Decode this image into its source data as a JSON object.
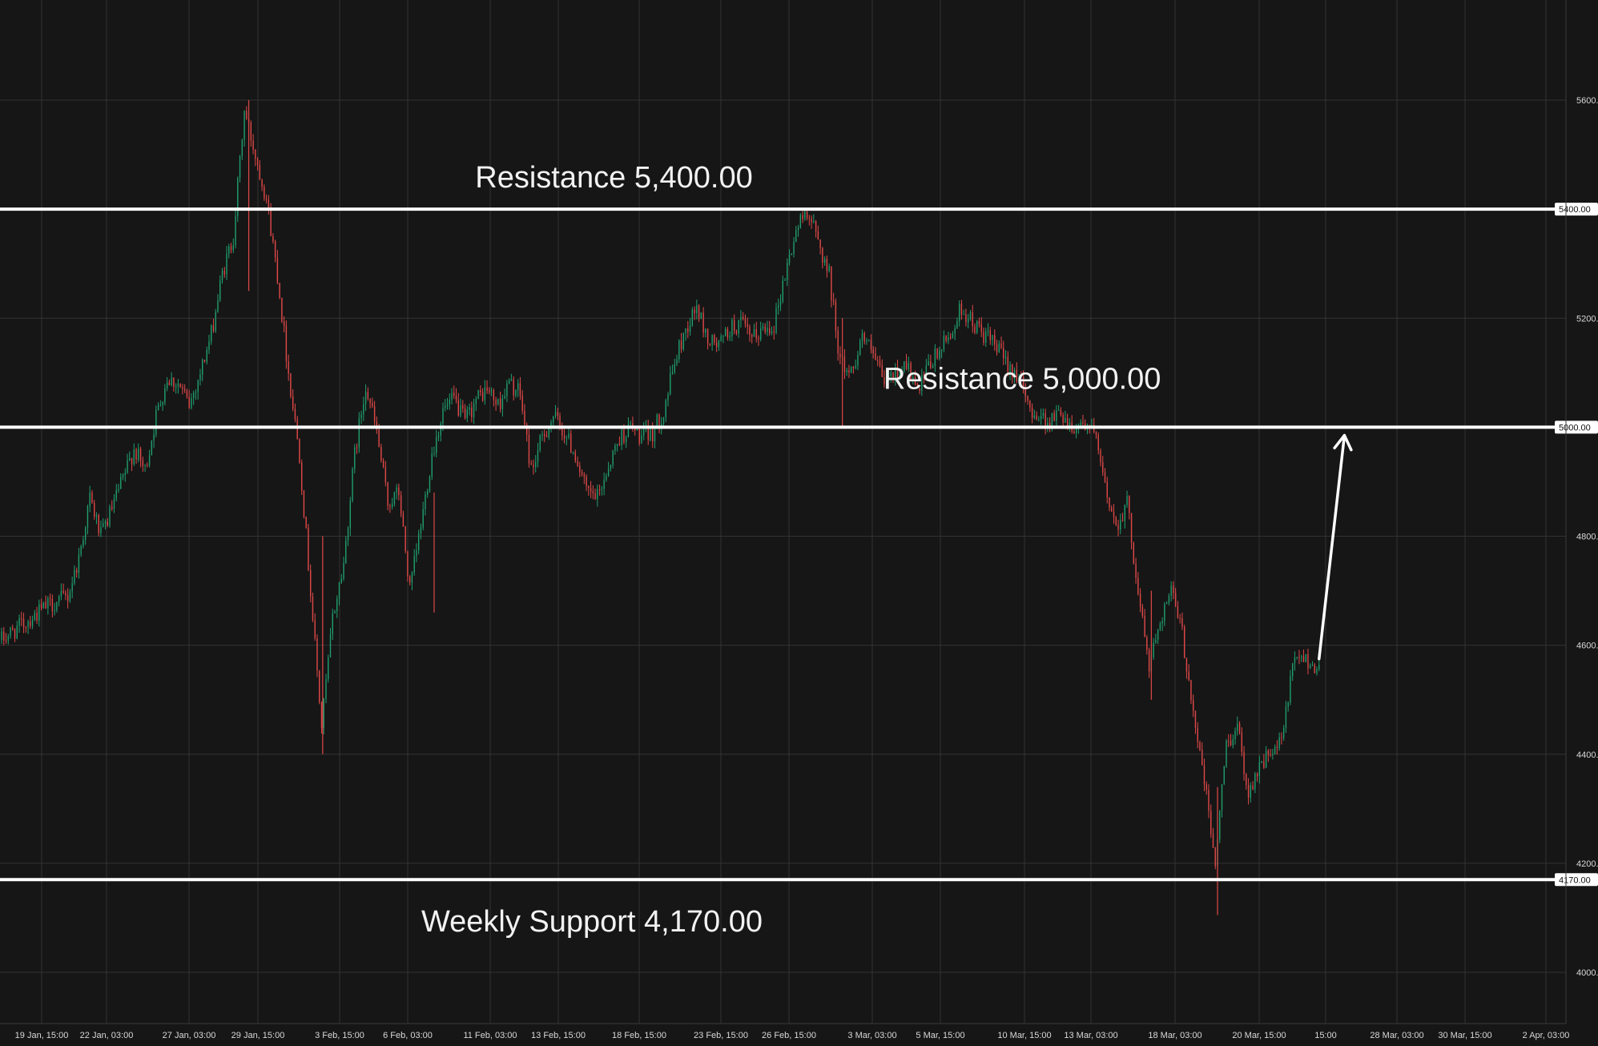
{
  "chart_data": {
    "type": "candlestick",
    "title": "",
    "ylim": [
      3920,
      5760
    ],
    "y_ticks": [
      "5600.00",
      "5200.00",
      "4800.00",
      "4600.00",
      "4400.00",
      "4200.00",
      "4000.00"
    ],
    "x_ticks": [
      "19 Jan, 15:00",
      "22 Jan, 03:00",
      "27 Jan, 03:00",
      "29 Jan, 15:00",
      "3 Feb, 15:00",
      "6 Feb, 03:00",
      "11 Feb, 03:00",
      "13 Feb, 15:00",
      "18 Feb, 15:00",
      "23 Feb, 15:00",
      "26 Feb, 15:00",
      "3 Mar, 03:00",
      "5 Mar, 15:00",
      "10 Mar, 15:00",
      "13 Mar, 03:00",
      "18 Mar, 03:00",
      "20 Mar, 15:00",
      "15:00",
      "28 Mar, 03:00",
      "30 Mar, 15:00",
      "2 Apr, 03:00"
    ],
    "grid": true,
    "up_color": "#1f9e6e",
    "down_color": "#e04848",
    "price_path": [
      {
        "t": 0,
        "p": 4610
      },
      {
        "t": 2,
        "p": 4640
      },
      {
        "t": 4,
        "p": 4670
      },
      {
        "t": 6,
        "p": 4690
      },
      {
        "t": 7,
        "p": 4760
      },
      {
        "t": 8,
        "p": 4870
      },
      {
        "t": 9,
        "p": 4800
      },
      {
        "t": 10,
        "p": 4850
      },
      {
        "t": 12,
        "p": 4960
      },
      {
        "t": 13,
        "p": 4920
      },
      {
        "t": 14,
        "p": 5020
      },
      {
        "t": 15,
        "p": 5090
      },
      {
        "t": 16,
        "p": 5080
      },
      {
        "t": 17,
        "p": 5040
      },
      {
        "t": 18,
        "p": 5100
      },
      {
        "t": 19,
        "p": 5170
      },
      {
        "t": 20,
        "p": 5280
      },
      {
        "t": 21,
        "p": 5350
      },
      {
        "t": 22,
        "p": 5580
      },
      {
        "t": 23,
        "p": 5500
      },
      {
        "t": 24,
        "p": 5420
      },
      {
        "t": 25,
        "p": 5280
      },
      {
        "t": 26,
        "p": 5100
      },
      {
        "t": 27,
        "p": 4950
      },
      {
        "t": 28,
        "p": 4700
      },
      {
        "t": 29,
        "p": 4450
      },
      {
        "t": 30,
        "p": 4650
      },
      {
        "t": 31,
        "p": 4750
      },
      {
        "t": 32,
        "p": 4950
      },
      {
        "t": 33,
        "p": 5080
      },
      {
        "t": 34,
        "p": 4990
      },
      {
        "t": 35,
        "p": 4860
      },
      {
        "t": 36,
        "p": 4880
      },
      {
        "t": 37,
        "p": 4700
      },
      {
        "t": 38,
        "p": 4820
      },
      {
        "t": 39,
        "p": 4950
      },
      {
        "t": 40,
        "p": 5030
      },
      {
        "t": 41,
        "p": 5050
      },
      {
        "t": 42,
        "p": 5010
      },
      {
        "t": 43,
        "p": 5050
      },
      {
        "t": 44,
        "p": 5070
      },
      {
        "t": 45,
        "p": 5040
      },
      {
        "t": 46,
        "p": 5080
      },
      {
        "t": 47,
        "p": 5060
      },
      {
        "t": 48,
        "p": 4920
      },
      {
        "t": 49,
        "p": 4980
      },
      {
        "t": 50,
        "p": 5020
      },
      {
        "t": 51,
        "p": 4990
      },
      {
        "t": 52,
        "p": 4950
      },
      {
        "t": 53,
        "p": 4880
      },
      {
        "t": 54,
        "p": 4870
      },
      {
        "t": 55,
        "p": 4930
      },
      {
        "t": 56,
        "p": 4980
      },
      {
        "t": 57,
        "p": 5000
      },
      {
        "t": 58,
        "p": 4980
      },
      {
        "t": 59,
        "p": 4990
      },
      {
        "t": 60,
        "p": 5030
      },
      {
        "t": 61,
        "p": 5120
      },
      {
        "t": 62,
        "p": 5180
      },
      {
        "t": 63,
        "p": 5220
      },
      {
        "t": 64,
        "p": 5160
      },
      {
        "t": 65,
        "p": 5150
      },
      {
        "t": 66,
        "p": 5180
      },
      {
        "t": 67,
        "p": 5190
      },
      {
        "t": 68,
        "p": 5160
      },
      {
        "t": 69,
        "p": 5180
      },
      {
        "t": 70,
        "p": 5190
      },
      {
        "t": 71,
        "p": 5280
      },
      {
        "t": 72,
        "p": 5360
      },
      {
        "t": 73,
        "p": 5400
      },
      {
        "t": 74,
        "p": 5340
      },
      {
        "t": 75,
        "p": 5280
      },
      {
        "t": 76,
        "p": 5120
      },
      {
        "t": 77,
        "p": 5100
      },
      {
        "t": 78,
        "p": 5170
      },
      {
        "t": 79,
        "p": 5130
      },
      {
        "t": 80,
        "p": 5080
      },
      {
        "t": 81,
        "p": 5100
      },
      {
        "t": 82,
        "p": 5120
      },
      {
        "t": 83,
        "p": 5060
      },
      {
        "t": 84,
        "p": 5110
      },
      {
        "t": 85,
        "p": 5140
      },
      {
        "t": 86,
        "p": 5170
      },
      {
        "t": 87,
        "p": 5220
      },
      {
        "t": 88,
        "p": 5190
      },
      {
        "t": 89,
        "p": 5170
      },
      {
        "t": 90,
        "p": 5150
      },
      {
        "t": 91,
        "p": 5120
      },
      {
        "t": 92,
        "p": 5100
      },
      {
        "t": 93,
        "p": 5040
      },
      {
        "t": 94,
        "p": 5020
      },
      {
        "t": 95,
        "p": 5010
      },
      {
        "t": 96,
        "p": 5030
      },
      {
        "t": 97,
        "p": 5000
      },
      {
        "t": 98,
        "p": 5010
      },
      {
        "t": 99,
        "p": 4990
      },
      {
        "t": 100,
        "p": 4890
      },
      {
        "t": 101,
        "p": 4820
      },
      {
        "t": 102,
        "p": 4860
      },
      {
        "t": 103,
        "p": 4700
      },
      {
        "t": 104,
        "p": 4560
      },
      {
        "t": 105,
        "p": 4650
      },
      {
        "t": 106,
        "p": 4700
      },
      {
        "t": 107,
        "p": 4620
      },
      {
        "t": 108,
        "p": 4480
      },
      {
        "t": 109,
        "p": 4350
      },
      {
        "t": 110,
        "p": 4200
      },
      {
        "t": 111,
        "p": 4420
      },
      {
        "t": 112,
        "p": 4450
      },
      {
        "t": 113,
        "p": 4330
      },
      {
        "t": 114,
        "p": 4380
      },
      {
        "t": 115,
        "p": 4400
      },
      {
        "t": 116,
        "p": 4420
      },
      {
        "t": 117,
        "p": 4560
      },
      {
        "t": 118,
        "p": 4580
      },
      {
        "t": 119,
        "p": 4560
      }
    ],
    "spikes": [
      {
        "t": 22.4,
        "low": 5250,
        "high": 5600
      },
      {
        "t": 29.1,
        "low": 4400,
        "high": 4800
      },
      {
        "t": 110.2,
        "low": 4105,
        "high": 4340
      },
      {
        "t": 76.2,
        "low": 5000,
        "high": 5200
      },
      {
        "t": 39.2,
        "low": 4660,
        "high": 4880
      },
      {
        "t": 104.2,
        "low": 4500,
        "high": 4700
      }
    ],
    "levels": [
      {
        "value": 5400,
        "label": "5400.00"
      },
      {
        "value": 5000,
        "label": "5000.00"
      },
      {
        "value": 4170,
        "label": "4170.00"
      }
    ],
    "annotations": [
      {
        "text": "Resistance 5,400.00",
        "t": 55.5,
        "price": 5440
      },
      {
        "text": "Resistance 5,000.00",
        "t": 92.5,
        "price": 5070
      },
      {
        "text": "Weekly Support 4,170.00",
        "t": 53.5,
        "price": 4075
      }
    ],
    "arrow": {
      "from": {
        "t": 119.4,
        "price": 4575
      },
      "to": {
        "t": 121.7,
        "price": 4985
      }
    }
  }
}
